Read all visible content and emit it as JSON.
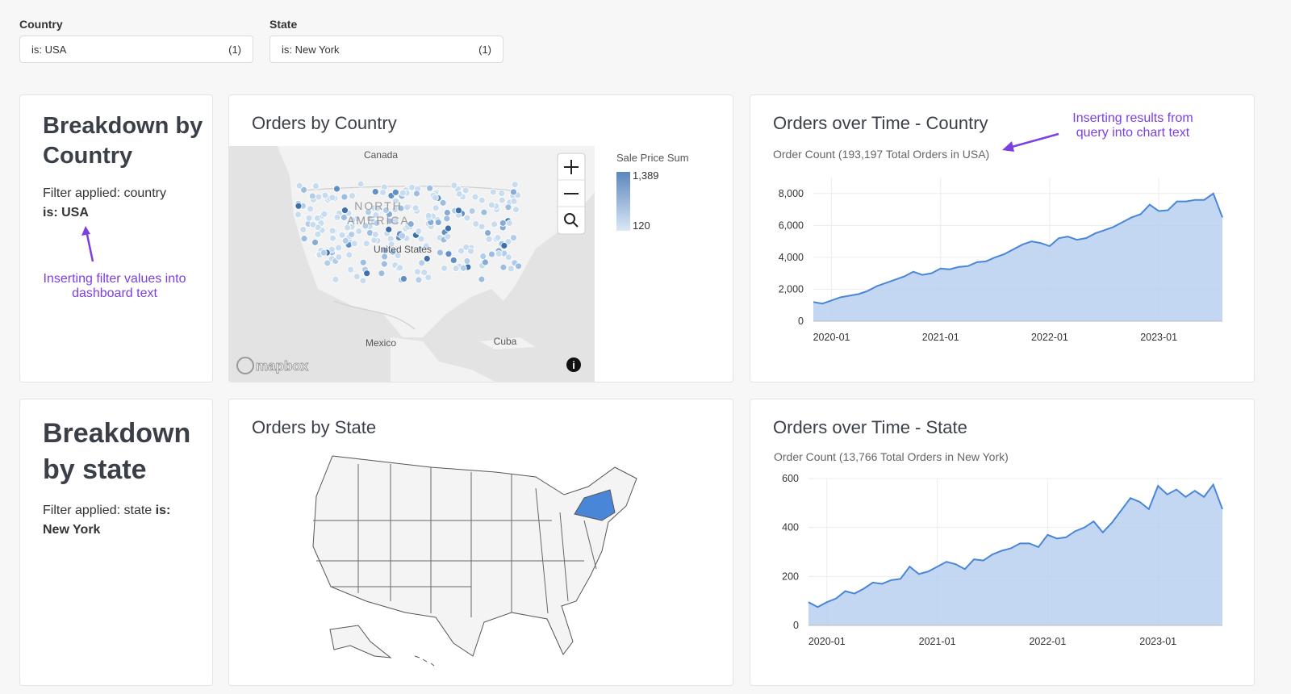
{
  "filters": [
    {
      "label": "Country",
      "value": "is: USA",
      "count": "(1)"
    },
    {
      "label": "State",
      "value": "is: New York",
      "count": "(1)"
    }
  ],
  "breakdowns": [
    {
      "title": "Breakdown by Country",
      "filter_text": "Filter applied: country",
      "filter_value": "is: USA"
    },
    {
      "title": "Breakdown by state",
      "filter_text": "Filter applied: state",
      "filter_value": "is: New York"
    }
  ],
  "annotations": [
    "Inserting filter values into dashboard text",
    "Inserting results from query into chart text"
  ],
  "country_map": {
    "title": "Orders by Country",
    "labels": [
      "Canada",
      "NORTH",
      "AMERICA",
      "United States",
      "Mexico",
      "Cuba"
    ],
    "attribution": "mapbox",
    "legend": {
      "title": "Sale Price Sum",
      "max": {
        "value": 1389,
        "label": "1,389"
      },
      "min": 120
    }
  },
  "state_map": {
    "title": "Orders by State",
    "highlighted": "New York"
  },
  "charts": [
    {
      "type": "area",
      "title": "Orders over Time - Country",
      "subtitle": "Order Count (193,197 Total Orders in USA)",
      "x": [
        "2019-11",
        "2019-12",
        "2020-01",
        "2020-02",
        "2020-03",
        "2020-04",
        "2020-05",
        "2020-06",
        "2020-07",
        "2020-08",
        "2020-09",
        "2020-10",
        "2020-11",
        "2020-12",
        "2021-01",
        "2021-02",
        "2021-03",
        "2021-04",
        "2021-05",
        "2021-06",
        "2021-07",
        "2021-08",
        "2021-09",
        "2021-10",
        "2021-11",
        "2021-12",
        "2022-01",
        "2022-02",
        "2022-03",
        "2022-04",
        "2022-05",
        "2022-06",
        "2022-07",
        "2022-08",
        "2022-09",
        "2022-10",
        "2022-11",
        "2022-12",
        "2023-01",
        "2023-02",
        "2023-03",
        "2023-04",
        "2023-05",
        "2023-06",
        "2023-07",
        "2023-08"
      ],
      "values": [
        1200,
        1100,
        1300,
        1500,
        1600,
        1700,
        1900,
        2200,
        2400,
        2600,
        2800,
        3100,
        2900,
        3000,
        3300,
        3250,
        3400,
        3450,
        3700,
        3750,
        4000,
        4200,
        4500,
        4800,
        5000,
        4900,
        4700,
        5200,
        5300,
        5100,
        5200,
        5500,
        5700,
        5900,
        6200,
        6500,
        6700,
        7300,
        6900,
        6950,
        7500,
        7500,
        7600,
        7600,
        8000,
        6500
      ],
      "color": "#4a86d8",
      "fill": "#b9d0f0",
      "ylim": [
        0,
        9000
      ],
      "yticks": [
        0,
        {
          "value": 2000,
          "label": "2,000"
        },
        {
          "value": 4000,
          "label": "4,000"
        },
        {
          "value": 6000,
          "label": "6,000"
        },
        {
          "value": 8000,
          "label": "8,000"
        }
      ],
      "xticks": [
        "2020-01",
        "2021-01",
        "2022-01",
        "2023-01"
      ],
      "grid": true
    },
    {
      "type": "area",
      "title": "Orders over Time - State",
      "subtitle": "Order Count (13,766 Total Orders in New York)",
      "x": [
        "2019-11",
        "2019-12",
        "2020-01",
        "2020-02",
        "2020-03",
        "2020-04",
        "2020-05",
        "2020-06",
        "2020-07",
        "2020-08",
        "2020-09",
        "2020-10",
        "2020-11",
        "2020-12",
        "2021-01",
        "2021-02",
        "2021-03",
        "2021-04",
        "2021-05",
        "2021-06",
        "2021-07",
        "2021-08",
        "2021-09",
        "2021-10",
        "2021-11",
        "2021-12",
        "2022-01",
        "2022-02",
        "2022-03",
        "2022-04",
        "2022-05",
        "2022-06",
        "2022-07",
        "2022-08",
        "2022-09",
        "2022-10",
        "2022-11",
        "2022-12",
        "2023-01",
        "2023-02",
        "2023-03",
        "2023-04",
        "2023-05",
        "2023-06",
        "2023-07",
        "2023-08"
      ],
      "values": [
        95,
        75,
        95,
        110,
        140,
        130,
        150,
        175,
        170,
        185,
        190,
        240,
        210,
        220,
        240,
        260,
        250,
        230,
        270,
        265,
        290,
        305,
        315,
        335,
        335,
        320,
        370,
        355,
        360,
        385,
        400,
        425,
        380,
        420,
        470,
        520,
        505,
        475,
        570,
        535,
        555,
        525,
        550,
        525,
        575,
        475
      ],
      "color": "#4a86d8",
      "fill": "#b9d0f0",
      "ylim": [
        0,
        600
      ],
      "yticks": [
        0,
        200,
        400,
        600
      ],
      "xticks": [
        "2020-01",
        "2021-01",
        "2022-01",
        "2023-01"
      ],
      "grid": true
    }
  ]
}
